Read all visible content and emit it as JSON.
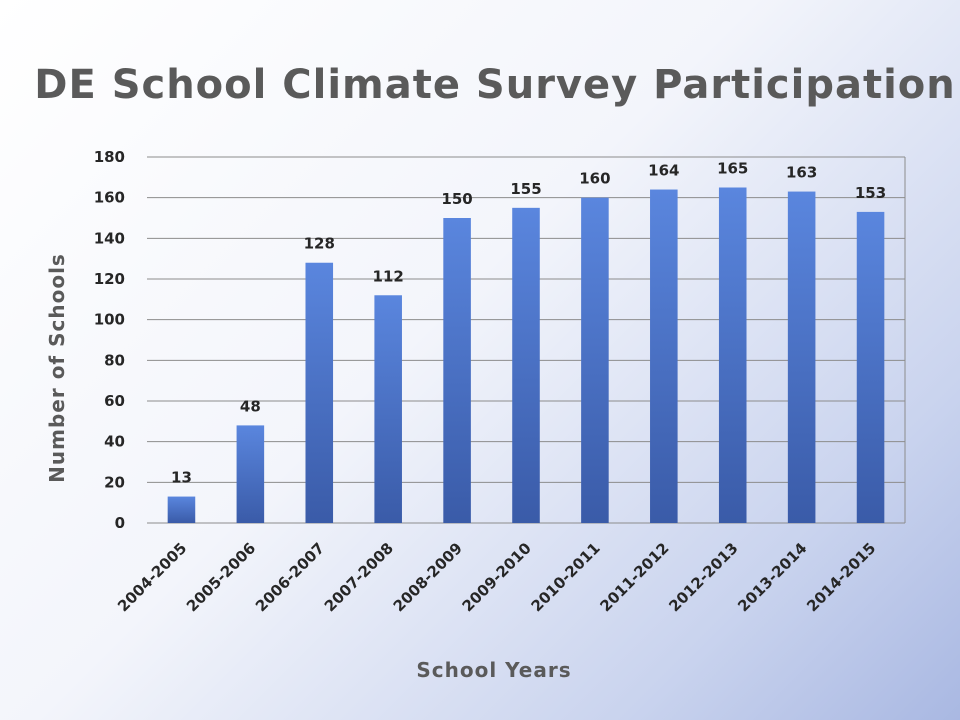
{
  "title": "DE School Climate Survey Participation",
  "colors": {
    "bar_top": "#5a86de",
    "bar_bottom": "#3a5ba8",
    "grid": "#8c8c8c",
    "text": "#262626",
    "title_text": "#5a5a5a"
  },
  "chart_data": {
    "type": "bar",
    "title": "DE School Climate Survey Participation",
    "xlabel": "School Years",
    "ylabel": "Number of Schools",
    "categories": [
      "2004-2005",
      "2005-2006",
      "2006-2007",
      "2007-2008",
      "2008-2009",
      "2009-2010",
      "2010-2011",
      "2011-2012",
      "2012-2013",
      "2013-2014",
      "2014-2015"
    ],
    "values": [
      13,
      48,
      128,
      112,
      150,
      155,
      160,
      164,
      165,
      163,
      153
    ],
    "ylim": [
      0,
      180
    ],
    "yticks": [
      "0",
      "20",
      "40",
      "60",
      "80",
      "100",
      "120",
      "140",
      "160",
      "180"
    ],
    "grid": true,
    "legend": false,
    "data_labels": true
  }
}
